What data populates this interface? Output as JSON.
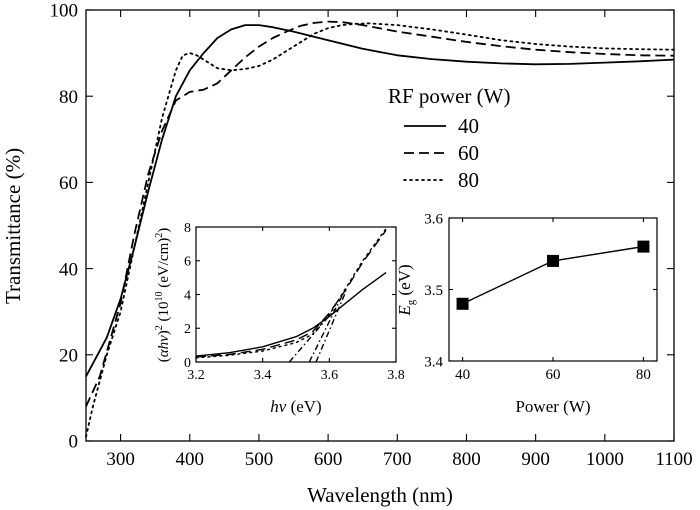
{
  "chart_data": [
    {
      "type": "line",
      "xlabel": "Wavelength (nm)",
      "ylabel": "Transmittance (%)",
      "xlim": [
        250,
        1100
      ],
      "ylim": [
        0,
        100
      ],
      "xticks": [
        300,
        400,
        500,
        600,
        700,
        800,
        900,
        1000,
        1100
      ],
      "yticks": [
        0,
        20,
        40,
        60,
        80,
        100
      ],
      "legend": {
        "title": "RF power (W)",
        "placement": "top-right"
      },
      "series": [
        {
          "name": "40",
          "style": "solid",
          "x": [
            250,
            280,
            300,
            320,
            340,
            360,
            380,
            400,
            420,
            440,
            460,
            480,
            500,
            520,
            550,
            600,
            650,
            700,
            750,
            800,
            850,
            900,
            950,
            1000,
            1050,
            1100
          ],
          "y": [
            15,
            24,
            33,
            45,
            58,
            70,
            80,
            86,
            90,
            93.5,
            95.5,
            96.5,
            96.5,
            96,
            95,
            93,
            91,
            89.5,
            88.6,
            88,
            87.6,
            87.4,
            87.5,
            87.8,
            88.1,
            88.5
          ]
        },
        {
          "name": "60",
          "style": "dashed",
          "x": [
            250,
            270,
            300,
            320,
            340,
            360,
            380,
            400,
            420,
            440,
            460,
            480,
            500,
            520,
            540,
            560,
            580,
            600,
            620,
            650,
            700,
            750,
            800,
            850,
            900,
            950,
            1000,
            1050,
            1100
          ],
          "y": [
            8,
            15,
            32,
            48,
            62,
            72,
            79,
            81,
            81.5,
            83,
            86,
            89,
            91.5,
            93.5,
            95,
            96.3,
            97,
            97.3,
            97.2,
            96.5,
            95,
            93.8,
            92.6,
            91.6,
            90.8,
            90.2,
            89.8,
            89.5,
            89.4
          ]
        },
        {
          "name": "80",
          "style": "dotted",
          "x": [
            250,
            260,
            280,
            300,
            320,
            340,
            360,
            380,
            390,
            400,
            410,
            420,
            440,
            460,
            480,
            500,
            520,
            540,
            560,
            580,
            600,
            620,
            640,
            660,
            700,
            750,
            800,
            850,
            900,
            950,
            1000,
            1050,
            1100
          ],
          "y": [
            1,
            8,
            20,
            30,
            45,
            60,
            75,
            86,
            89.5,
            90,
            89.5,
            88.5,
            86.5,
            86,
            86.3,
            87,
            88.5,
            90.5,
            92.5,
            94.5,
            95.8,
            96.5,
            96.8,
            96.9,
            96.5,
            95.5,
            94.3,
            93,
            92.1,
            91.5,
            91.1,
            90.9,
            90.8
          ]
        }
      ]
    },
    {
      "type": "line",
      "xlabel": "hv (eV)",
      "ylabel": "(αhv)² (10¹⁰ (eV/cm)²)",
      "xlim": [
        3.2,
        3.8
      ],
      "ylim": [
        0,
        8
      ],
      "xticks": [
        3.2,
        3.4,
        3.6,
        3.8
      ],
      "yticks": [
        0,
        2,
        4,
        6,
        8
      ],
      "series": [
        {
          "style": "solid",
          "x": [
            3.2,
            3.3,
            3.4,
            3.5,
            3.55,
            3.6,
            3.65,
            3.7,
            3.77
          ],
          "y": [
            0.35,
            0.55,
            0.9,
            1.5,
            2.0,
            2.7,
            3.5,
            4.3,
            5.3
          ]
        },
        {
          "style": "dashed",
          "x": [
            3.2,
            3.3,
            3.4,
            3.5,
            3.55,
            3.6,
            3.65,
            3.7,
            3.77
          ],
          "y": [
            0.3,
            0.45,
            0.75,
            1.3,
            1.8,
            2.9,
            4.3,
            5.9,
            7.8
          ]
        },
        {
          "style": "dotted",
          "x": [
            3.2,
            3.3,
            3.4,
            3.5,
            3.55,
            3.6,
            3.65,
            3.7,
            3.77
          ],
          "y": [
            0.25,
            0.4,
            0.65,
            1.15,
            1.65,
            2.8,
            4.4,
            6.0,
            7.9
          ]
        },
        {
          "style": "dashdot",
          "x": [
            3.48,
            3.62
          ],
          "y": [
            0,
            3.2
          ]
        },
        {
          "style": "dashdot",
          "x": [
            3.54,
            3.64
          ],
          "y": [
            0,
            4.0
          ]
        },
        {
          "style": "dashdot",
          "x": [
            3.56,
            3.65
          ],
          "y": [
            0,
            4.2
          ]
        }
      ]
    },
    {
      "type": "scatter",
      "xlabel": "Power (W)",
      "ylabel": "Eg (eV)",
      "xlim": [
        37,
        83
      ],
      "ylim": [
        3.4,
        3.6
      ],
      "xticks": [
        40,
        60,
        80
      ],
      "yticks": [
        3.4,
        3.5,
        3.6
      ],
      "series": [
        {
          "x": [
            40,
            60,
            80
          ],
          "y": [
            3.48,
            3.54,
            3.56
          ]
        }
      ]
    }
  ]
}
